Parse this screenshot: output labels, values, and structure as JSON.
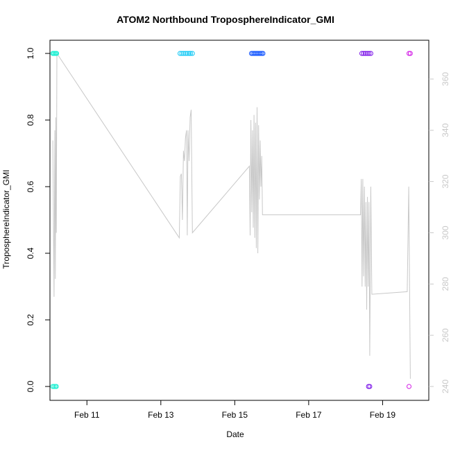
{
  "chart_data": {
    "type": "scatter",
    "title": "ATOM2 Northbound TroposphereIndicator_GMI",
    "xlabel": "Date",
    "ylabel": "TroposphereIndicator_GMI",
    "xlim": [
      "2024-02-10T00:00",
      "2024-02-20T06:00"
    ],
    "x_ticks": [
      "Feb 11",
      "Feb 13",
      "Feb 15",
      "Feb 17",
      "Feb 19"
    ],
    "x_tick_values": [
      "2024-02-11T00:00",
      "2024-02-13T00:00",
      "2024-02-15T00:00",
      "2024-02-17T00:00",
      "2024-02-19T00:00"
    ],
    "ylim": [
      0,
      1
    ],
    "y_ticks": [
      "0.0",
      "0.2",
      "0.4",
      "0.6",
      "0.8",
      "1.0"
    ],
    "y_tick_values": [
      0,
      0.2,
      0.4,
      0.6,
      0.8,
      1.0
    ],
    "y2lim": [
      240,
      370
    ],
    "y2_ticks": [
      "240",
      "260",
      "280",
      "300",
      "320",
      "340",
      "360"
    ],
    "y2_tick_values": [
      240,
      260,
      280,
      300,
      320,
      340,
      360
    ],
    "y2_color": "#c8c8c8",
    "line_color": "#c8c8c8",
    "marker": "open-circle",
    "grid": false,
    "series": [
      {
        "color": "#19f0d2",
        "points": [
          [
            "2024-02-10T01:50",
            1
          ],
          [
            "2024-02-10T02:30",
            1
          ],
          [
            "2024-02-10T03:10",
            1
          ],
          [
            "2024-02-10T03:50",
            1
          ],
          [
            "2024-02-10T04:20",
            1
          ],
          [
            "2024-02-10T01:50",
            0
          ],
          [
            "2024-02-10T02:40",
            0
          ],
          [
            "2024-02-10T03:30",
            0
          ],
          [
            "2024-02-10T04:10",
            0
          ]
        ]
      },
      {
        "color": "#12c8f5",
        "points": [
          [
            "2024-02-13T12:30",
            1
          ],
          [
            "2024-02-13T13:40",
            1
          ],
          [
            "2024-02-13T14:50",
            1
          ],
          [
            "2024-02-13T16:00",
            1
          ],
          [
            "2024-02-13T17:10",
            1
          ],
          [
            "2024-02-13T18:20",
            1
          ],
          [
            "2024-02-13T19:20",
            1
          ],
          [
            "2024-02-13T20:30",
            1
          ]
        ]
      },
      {
        "color": "#1255ff",
        "points": [
          [
            "2024-02-15T10:50",
            1
          ],
          [
            "2024-02-15T11:40",
            1
          ],
          [
            "2024-02-15T12:30",
            1
          ],
          [
            "2024-02-15T13:20",
            1
          ],
          [
            "2024-02-15T14:10",
            1
          ],
          [
            "2024-02-15T15:00",
            1
          ],
          [
            "2024-02-15T15:50",
            1
          ],
          [
            "2024-02-15T16:40",
            1
          ],
          [
            "2024-02-15T17:30",
            1
          ],
          [
            "2024-02-15T18:20",
            1
          ]
        ]
      },
      {
        "color": "#7a12e8",
        "points": [
          [
            "2024-02-18T10:30",
            1
          ],
          [
            "2024-02-18T11:40",
            1
          ],
          [
            "2024-02-18T12:50",
            1
          ],
          [
            "2024-02-18T14:00",
            1
          ],
          [
            "2024-02-18T15:10",
            1
          ],
          [
            "2024-02-18T16:20",
            1
          ],
          [
            "2024-02-18T14:50",
            0
          ],
          [
            "2024-02-18T15:40",
            0
          ]
        ]
      },
      {
        "color": "#d21ee6",
        "points": [
          [
            "2024-02-19T17:10",
            1
          ],
          [
            "2024-02-19T18:00",
            1
          ],
          [
            "2024-02-19T17:10",
            0
          ]
        ]
      }
    ],
    "secondary_line": {
      "axis": "right",
      "points": [
        [
          "2024-02-10T01:50",
          336
        ],
        [
          "2024-02-10T02:40",
          275
        ],
        [
          "2024-02-10T03:10",
          340
        ],
        [
          "2024-02-10T03:30",
          282
        ],
        [
          "2024-02-10T03:50",
          345
        ],
        [
          "2024-02-10T04:10",
          300
        ],
        [
          "2024-02-10T04:30",
          370
        ],
        [
          "2024-02-13T12:00",
          298
        ],
        [
          "2024-02-13T12:40",
          322
        ],
        [
          "2024-02-13T13:20",
          323
        ],
        [
          "2024-02-13T14:00",
          305
        ],
        [
          "2024-02-13T14:40",
          332
        ],
        [
          "2024-02-13T15:20",
          328
        ],
        [
          "2024-02-13T16:00",
          337
        ],
        [
          "2024-02-13T16:40",
          340
        ],
        [
          "2024-02-13T17:10",
          299
        ],
        [
          "2024-02-13T17:40",
          340
        ],
        [
          "2024-02-13T18:20",
          328
        ],
        [
          "2024-02-13T19:00",
          345
        ],
        [
          "2024-02-13T19:40",
          348
        ],
        [
          "2024-02-13T20:30",
          300
        ],
        [
          "2024-02-15T09:30",
          326
        ],
        [
          "2024-02-15T10:00",
          299
        ],
        [
          "2024-02-15T10:30",
          344
        ],
        [
          "2024-02-15T11:00",
          308
        ],
        [
          "2024-02-15T11:30",
          340
        ],
        [
          "2024-02-15T12:00",
          302
        ],
        [
          "2024-02-15T12:30",
          346
        ],
        [
          "2024-02-15T13:00",
          298
        ],
        [
          "2024-02-15T13:30",
          343
        ],
        [
          "2024-02-15T14:00",
          294
        ],
        [
          "2024-02-15T14:30",
          349
        ],
        [
          "2024-02-15T15:00",
          292
        ],
        [
          "2024-02-15T15:30",
          342
        ],
        [
          "2024-02-15T16:00",
          313
        ],
        [
          "2024-02-15T16:30",
          336
        ],
        [
          "2024-02-15T17:00",
          318
        ],
        [
          "2024-02-15T17:30",
          330
        ],
        [
          "2024-02-15T18:00",
          307
        ],
        [
          "2024-02-18T09:40",
          307
        ],
        [
          "2024-02-18T10:10",
          321
        ],
        [
          "2024-02-18T10:40",
          279
        ],
        [
          "2024-02-18T11:10",
          321
        ],
        [
          "2024-02-18T11:40",
          283
        ],
        [
          "2024-02-18T12:10",
          318
        ],
        [
          "2024-02-18T12:40",
          279
        ],
        [
          "2024-02-18T13:10",
          312
        ],
        [
          "2024-02-18T13:40",
          270
        ],
        [
          "2024-02-18T14:10",
          314
        ],
        [
          "2024-02-18T14:40",
          279
        ],
        [
          "2024-02-18T15:10",
          312
        ],
        [
          "2024-02-18T15:40",
          252
        ],
        [
          "2024-02-18T16:20",
          318
        ],
        [
          "2024-02-18T17:00",
          276
        ],
        [
          "2024-02-19T16:00",
          277
        ],
        [
          "2024-02-19T17:00",
          318
        ],
        [
          "2024-02-19T18:00",
          243
        ]
      ]
    }
  }
}
